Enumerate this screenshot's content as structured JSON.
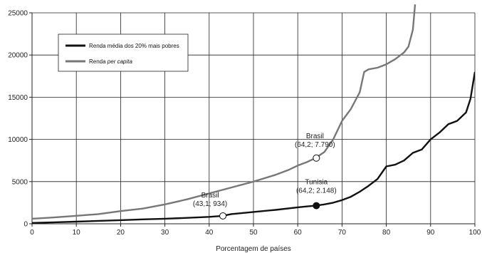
{
  "chart_data": {
    "type": "line",
    "title": "",
    "xlabel": "Porcentagem de países",
    "ylabel": "",
    "xlim": [
      0,
      100
    ],
    "ylim": [
      0,
      25000
    ],
    "xticks": [
      0,
      10,
      20,
      30,
      40,
      50,
      60,
      70,
      80,
      90,
      100
    ],
    "yticks": [
      0,
      5000,
      10000,
      15000,
      20000,
      25000
    ],
    "grid": true,
    "legend": {
      "placement": "top-left"
    },
    "series": [
      {
        "name": "Renda média dos 20% mais pobres",
        "color": "#111111",
        "x": [
          0,
          5,
          10,
          15,
          20,
          25,
          30,
          35,
          40,
          43,
          45,
          50,
          55,
          60,
          62,
          64,
          66,
          68,
          70,
          72,
          74,
          76,
          78,
          80,
          82,
          84,
          86,
          88,
          90,
          92,
          94,
          96,
          98,
          99,
          100
        ],
        "y": [
          100,
          180,
          250,
          350,
          430,
          520,
          600,
          700,
          820,
          934,
          1150,
          1400,
          1650,
          1950,
          2050,
          2148,
          2300,
          2500,
          2800,
          3200,
          3800,
          4500,
          5300,
          6800,
          7000,
          7500,
          8400,
          8800,
          10000,
          10800,
          11800,
          12200,
          13200,
          14800,
          18000
        ]
      },
      {
        "name": "Renda per capita",
        "color": "#777777",
        "x": [
          0,
          5,
          10,
          15,
          20,
          25,
          30,
          35,
          40,
          45,
          50,
          55,
          58,
          60,
          62,
          64,
          66,
          68,
          70,
          72,
          74,
          75,
          76,
          78,
          80,
          82,
          84,
          85,
          86,
          86.5
        ],
        "y": [
          600,
          750,
          950,
          1150,
          1500,
          1800,
          2300,
          2900,
          3600,
          4300,
          5000,
          5800,
          6400,
          6900,
          7300,
          7790,
          8500,
          10000,
          12200,
          13600,
          15600,
          18000,
          18300,
          18500,
          18900,
          19500,
          20300,
          21000,
          23000,
          26000
        ]
      }
    ],
    "annotations": [
      {
        "series": 1,
        "x": 64.2,
        "y": 7790,
        "lines": [
          "Brasil",
          "(64,2; 7.790)"
        ],
        "marker": "open"
      },
      {
        "series": 0,
        "x": 43.1,
        "y": 934,
        "lines": [
          "Brasil",
          "(43,1; 934)"
        ],
        "marker": "open"
      },
      {
        "series": 0,
        "x": 64.2,
        "y": 2148,
        "lines": [
          "Tunisia",
          "(64,2; 2.148)"
        ],
        "marker": "filled"
      }
    ],
    "legend_entries": [
      {
        "label": "Renda média dos 20% mais pobres",
        "color": "#111111",
        "italic_part": ""
      },
      {
        "label_prefix": "Renda ",
        "label_italic": "per capita",
        "color": "#777777"
      }
    ]
  }
}
